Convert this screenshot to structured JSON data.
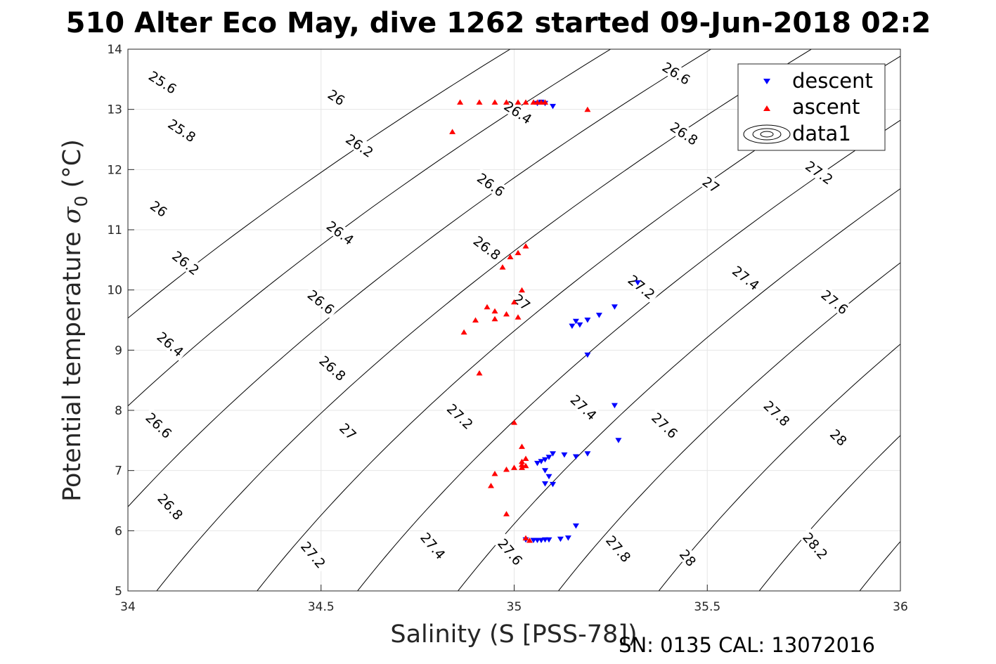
{
  "title": "510 Alter Eco May, dive 1262 started 09-Jun-2018 02:2",
  "footer": "SN: 0135  CAL: 13072016",
  "chart_data": {
    "type": "scatter",
    "xlabel": "Salinity (S [PSS-78])",
    "ylabel_main": "Potential temperature ",
    "ylabel_sym": "σ",
    "ylabel_sub": "0",
    "ylabel_unit": " (°C)",
    "xlim": [
      34,
      36
    ],
    "ylim": [
      5,
      14
    ],
    "xticks": [
      34,
      34.5,
      35,
      35.5,
      36
    ],
    "yticks": [
      5,
      6,
      7,
      8,
      9,
      10,
      11,
      12,
      13,
      14
    ],
    "xtick_labels": [
      "34",
      "34.5",
      "35",
      "35.5",
      "36"
    ],
    "ytick_labels": [
      "5",
      "6",
      "7",
      "8",
      "9",
      "10",
      "11",
      "12",
      "13",
      "14"
    ],
    "grid": true,
    "legend_position": "top-right",
    "legend": [
      {
        "label": "descent",
        "marker": "triangle-down",
        "color": "#0000ff"
      },
      {
        "label": "ascent",
        "marker": "triangle-up",
        "color": "#ff0000"
      },
      {
        "label": "data1",
        "marker": "contour",
        "color": "#000000"
      }
    ],
    "contour_levels": [
      25.6,
      25.8,
      26,
      26.2,
      26.4,
      26.6,
      26.8,
      27,
      27.2,
      27.4,
      27.6,
      27.8,
      28,
      28.2
    ],
    "contour_labels": [
      {
        "text": "25.6",
        "x": 34.09,
        "y": 13.45
      },
      {
        "text": "25.8",
        "x": 34.14,
        "y": 12.65
      },
      {
        "text": "26",
        "x": 34.08,
        "y": 11.35
      },
      {
        "text": "26.2",
        "x": 34.15,
        "y": 10.45
      },
      {
        "text": "26.4",
        "x": 34.11,
        "y": 9.1
      },
      {
        "text": "26.6",
        "x": 34.08,
        "y": 7.75
      },
      {
        "text": "26.8",
        "x": 34.11,
        "y": 6.4
      },
      {
        "text": "27.2",
        "x": 34.48,
        "y": 5.6
      },
      {
        "text": "27.4",
        "x": 34.79,
        "y": 5.75
      },
      {
        "text": "27.6",
        "x": 34.99,
        "y": 5.65
      },
      {
        "text": "26",
        "x": 34.54,
        "y": 13.2
      },
      {
        "text": "26.2",
        "x": 34.6,
        "y": 12.4
      },
      {
        "text": "26.4",
        "x": 34.55,
        "y": 10.95
      },
      {
        "text": "26.6",
        "x": 34.5,
        "y": 9.8
      },
      {
        "text": "26.8",
        "x": 34.53,
        "y": 8.7
      },
      {
        "text": "27",
        "x": 34.57,
        "y": 7.65
      },
      {
        "text": "27.2",
        "x": 34.86,
        "y": 7.9
      },
      {
        "text": "26.4",
        "x": 35.01,
        "y": 12.95
      },
      {
        "text": "26.6",
        "x": 34.94,
        "y": 11.75
      },
      {
        "text": "26.8",
        "x": 34.93,
        "y": 10.7
      },
      {
        "text": "27",
        "x": 35.02,
        "y": 9.8
      },
      {
        "text": "27.4",
        "x": 35.18,
        "y": 8.05
      },
      {
        "text": "27.8",
        "x": 35.27,
        "y": 5.7
      },
      {
        "text": "26.6",
        "x": 35.42,
        "y": 13.6
      },
      {
        "text": "26.8",
        "x": 35.44,
        "y": 12.6
      },
      {
        "text": "27",
        "x": 35.51,
        "y": 11.75
      },
      {
        "text": "27.2",
        "x": 35.33,
        "y": 10.05
      },
      {
        "text": "27.6",
        "x": 35.39,
        "y": 7.75
      },
      {
        "text": "28",
        "x": 35.45,
        "y": 5.55
      },
      {
        "text": "27.2",
        "x": 35.79,
        "y": 11.95
      },
      {
        "text": "27.4",
        "x": 35.6,
        "y": 10.2
      },
      {
        "text": "27.6",
        "x": 35.83,
        "y": 9.8
      },
      {
        "text": "27.8",
        "x": 35.68,
        "y": 7.95
      },
      {
        "text": "28",
        "x": 35.84,
        "y": 7.55
      },
      {
        "text": "28.2",
        "x": 35.78,
        "y": 5.75
      }
    ],
    "series": [
      {
        "name": "descent",
        "marker": "triangle-down",
        "color": "#0000ff",
        "x": [
          35.06,
          35.08,
          35.1,
          35.07,
          35.32,
          35.26,
          35.22,
          35.19,
          35.16,
          35.17,
          35.15,
          35.19,
          35.26,
          35.27,
          35.06,
          35.07,
          35.08,
          35.09,
          35.1,
          35.13,
          35.16,
          35.19,
          35.08,
          35.09,
          35.08,
          35.1,
          35.03,
          35.05,
          35.06,
          35.07,
          35.08,
          35.09,
          35.12,
          35.14,
          35.16
        ],
        "y": [
          13.1,
          13.1,
          13.05,
          13.12,
          10.12,
          9.72,
          9.58,
          9.5,
          9.48,
          9.42,
          9.4,
          8.92,
          8.08,
          7.5,
          7.12,
          7.15,
          7.18,
          7.22,
          7.28,
          7.26,
          7.23,
          7.28,
          7.0,
          6.9,
          6.78,
          6.77,
          5.85,
          5.84,
          5.84,
          5.84,
          5.85,
          5.85,
          5.86,
          5.88,
          6.08
        ]
      },
      {
        "name": "ascent",
        "marker": "triangle-up",
        "color": "#ff0000",
        "x": [
          34.86,
          34.91,
          34.95,
          34.98,
          35.01,
          35.03,
          35.05,
          35.06,
          35.07,
          35.08,
          35.19,
          34.84,
          35.03,
          35.01,
          34.99,
          34.97,
          35.02,
          35.0,
          34.93,
          34.95,
          34.98,
          35.01,
          34.9,
          34.95,
          34.87,
          34.91,
          35.0,
          35.02,
          35.03,
          35.02,
          35.02,
          35.03,
          35.02,
          35.0,
          34.98,
          34.95,
          34.94,
          34.98,
          35.03,
          35.04
        ],
        "y": [
          13.12,
          13.12,
          13.12,
          13.12,
          13.12,
          13.12,
          13.12,
          13.12,
          13.12,
          13.12,
          13.0,
          12.63,
          10.73,
          10.62,
          10.55,
          10.38,
          10.0,
          9.8,
          9.72,
          9.65,
          9.6,
          9.55,
          9.5,
          9.52,
          9.3,
          8.62,
          7.8,
          7.4,
          7.2,
          7.15,
          7.1,
          7.08,
          7.05,
          7.05,
          7.02,
          6.95,
          6.75,
          6.28,
          5.88,
          5.84
        ]
      }
    ]
  }
}
